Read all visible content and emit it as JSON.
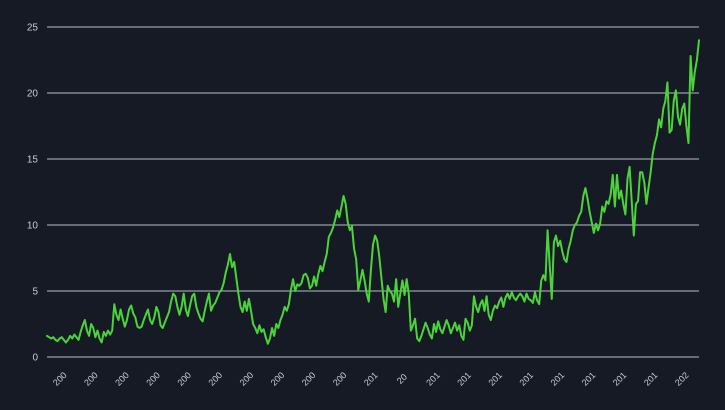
{
  "colors": {
    "background": "#161a25",
    "grid": "#b8bcc6",
    "text": "#c7cad1",
    "series": "#4bd33a"
  },
  "chart_data": {
    "type": "line",
    "title": "",
    "xlabel": "",
    "ylabel": "",
    "ylim": [
      0,
      25
    ],
    "grid": "horizontal",
    "legend": "none",
    "y_ticks": [
      "0",
      "5",
      "10",
      "15",
      "20",
      "25"
    ],
    "x_ticks": [
      "200",
      "200",
      "200",
      "200",
      "200",
      "200",
      "200",
      "200",
      "200",
      "200",
      "201",
      "20",
      "201",
      "201",
      "201",
      "201",
      "201",
      "201",
      "201",
      "201",
      "202"
    ],
    "series": [
      {
        "values": [
          1.6,
          1.5,
          1.4,
          1.5,
          1.3,
          1.2,
          1.4,
          1.5,
          1.3,
          1.1,
          1.3,
          1.6,
          1.4,
          1.7,
          1.5,
          1.3,
          1.9,
          2.4,
          2.8,
          2.0,
          1.6,
          2.5,
          2.2,
          1.5,
          2.0,
          1.4,
          1.1,
          1.9,
          1.6,
          2.0,
          1.7,
          2.0,
          4.0,
          3.2,
          2.8,
          3.6,
          2.9,
          2.3,
          2.8,
          3.6,
          3.9,
          3.3,
          3.0,
          2.3,
          2.2,
          2.3,
          2.8,
          3.2,
          3.6,
          2.8,
          2.5,
          3.0,
          3.8,
          3.4,
          2.4,
          2.2,
          2.6,
          3.0,
          3.4,
          4.2,
          4.8,
          4.6,
          3.8,
          3.2,
          3.8,
          4.8,
          3.6,
          3.1,
          3.9,
          4.6,
          4.8,
          3.8,
          3.3,
          2.9,
          2.7,
          3.5,
          4.2,
          4.8,
          3.5,
          3.9,
          4.1,
          4.5,
          4.9,
          5.1,
          5.6,
          6.4,
          7.0,
          7.8,
          6.8,
          7.2,
          6.0,
          4.8,
          3.8,
          3.4,
          4.2,
          3.5,
          4.4,
          3.5,
          2.5,
          2.2,
          1.8,
          2.4,
          1.9,
          2.1,
          1.5,
          1.0,
          1.4,
          2.2,
          1.6,
          2.5,
          2.2,
          2.8,
          3.2,
          3.8,
          3.5,
          4.0,
          5.1,
          5.9,
          5.0,
          5.5,
          5.4,
          5.6,
          6.2,
          6.3,
          6.0,
          5.2,
          5.4,
          6.1,
          5.4,
          6.3,
          6.9,
          6.5,
          7.2,
          7.8,
          9.1,
          9.4,
          9.8,
          10.4,
          11.1,
          10.6,
          11.4,
          12.2,
          11.6,
          10.2,
          9.6,
          9.9,
          8.2,
          7.4,
          5.1,
          5.8,
          6.6,
          5.8,
          4.8,
          4.2,
          6.6,
          8.5,
          9.2,
          8.8,
          7.6,
          6.0,
          4.4,
          3.4,
          5.4,
          5.0,
          4.8,
          4.2,
          5.9,
          3.8,
          4.8,
          5.8,
          4.7,
          5.9,
          4.8,
          2.0,
          2.4,
          2.9,
          1.4,
          1.2,
          1.6,
          2.1,
          2.6,
          2.2,
          1.7,
          1.4,
          2.5,
          1.9,
          2.7,
          2.1,
          1.8,
          2.3,
          2.8,
          2.4,
          1.8,
          2.2,
          2.6,
          2.0,
          2.4,
          1.6,
          1.3,
          2.9,
          2.6,
          2.0,
          2.4,
          4.6,
          3.8,
          3.4,
          4.0,
          4.3,
          3.5,
          4.6,
          3.2,
          2.8,
          3.5,
          3.9,
          3.7,
          4.2,
          4.5,
          3.8,
          4.5,
          4.8,
          4.4,
          4.9,
          4.5,
          4.3,
          4.6,
          4.8,
          4.6,
          4.2,
          4.8,
          4.4,
          4.3,
          4.1,
          4.9,
          4.3,
          4.0,
          5.8,
          6.2,
          5.8,
          9.6,
          7.0,
          4.4,
          8.7,
          9.2,
          8.4,
          8.8,
          8.0,
          7.4,
          7.2,
          8.2,
          8.8,
          9.6,
          10.0,
          10.2,
          10.7,
          11.0,
          12.2,
          12.8,
          12.0,
          11.0,
          10.2,
          9.4,
          10.1,
          9.6,
          10.1,
          11.4,
          11.0,
          11.8,
          11.6,
          12.3,
          13.8,
          11.4,
          13.8,
          12.0,
          12.6,
          11.6,
          10.8,
          13.5,
          14.4,
          11.8,
          9.2,
          11.6,
          11.8,
          14.0,
          14.0,
          13.2,
          11.6,
          12.8,
          14.0,
          15.4,
          16.2,
          16.8,
          18.0,
          17.4,
          18.8,
          19.4,
          20.8,
          17.0,
          17.2,
          19.4,
          20.2,
          18.2,
          17.6,
          18.8,
          19.2,
          17.5,
          16.2,
          22.8,
          20.2,
          21.6,
          22.5,
          24.0
        ]
      }
    ]
  }
}
